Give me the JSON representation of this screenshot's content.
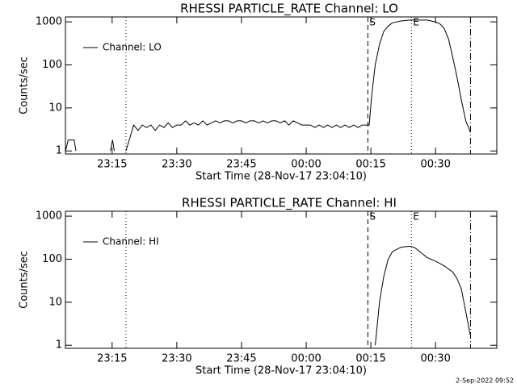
{
  "chart_data": [
    {
      "type": "line",
      "title": "RHESSI PARTICLE_RATE Channel: LO",
      "xlabel": "Start Time (28-Nov-17 23:04:10)",
      "ylabel": "Counts/sec",
      "log_y": true,
      "ylim": [
        0.85,
        1300
      ],
      "yticks": [
        1,
        10,
        100,
        1000
      ],
      "xlim": [
        4.17,
        104.2
      ],
      "xticks": [
        {
          "value": 15,
          "label": "23:15"
        },
        {
          "value": 30,
          "label": "23:30"
        },
        {
          "value": 45,
          "label": "23:45"
        },
        {
          "value": 60,
          "label": "00:00"
        },
        {
          "value": 75,
          "label": "00:15"
        },
        {
          "value": 90,
          "label": "00:30"
        }
      ],
      "legend": "upper left",
      "vlines": [
        {
          "x": 18.2,
          "style": "dotted"
        },
        {
          "x": 74.3,
          "style": "dashed",
          "label": "S"
        },
        {
          "x": 84.4,
          "style": "dotted",
          "label": "E"
        },
        {
          "x": 98.1,
          "style": "dashdot"
        }
      ],
      "x": [
        4.2,
        4.8,
        6.2,
        6.6,
        7,
        14.6,
        15.1,
        15.5,
        16,
        18.2,
        19.4,
        20,
        21,
        22,
        23,
        24,
        25,
        26,
        27,
        28,
        29,
        30,
        31,
        32,
        33,
        34,
        35,
        36,
        37,
        38,
        39,
        40,
        41,
        42,
        43,
        44,
        45,
        46,
        47,
        48,
        49,
        50,
        51,
        52,
        53,
        54,
        55,
        56,
        57,
        58,
        59,
        60,
        61,
        62,
        63,
        64,
        65,
        66,
        67,
        68,
        69,
        70,
        71,
        72,
        73,
        74,
        74.6,
        75.2,
        76,
        77,
        78,
        79,
        80,
        82,
        84,
        86,
        88,
        90,
        91,
        92,
        93,
        94,
        95,
        96,
        97,
        98.1
      ],
      "series": [
        {
          "name": "Channel: LO",
          "color": "#000000",
          "values": [
            1,
            1.8,
            1.8,
            1,
            null,
            1,
            1.8,
            1,
            null,
            1,
            2.5,
            4,
            3,
            4,
            3.5,
            4,
            3,
            4,
            3.5,
            4.5,
            3.5,
            4,
            4,
            5,
            4,
            4.5,
            4,
            5,
            4,
            4.5,
            5,
            4.5,
            5,
            5,
            4.5,
            5,
            5,
            4.5,
            5,
            5,
            4.5,
            5,
            4.5,
            5,
            5,
            4.5,
            5,
            4,
            5,
            4.5,
            4,
            4,
            4,
            3.5,
            4,
            3.5,
            4,
            3.5,
            4,
            3.5,
            4,
            3.5,
            4,
            3.5,
            4,
            4,
            4,
            20,
            100,
            300,
            600,
            800,
            950,
            1050,
            1100,
            1100,
            1100,
            1000,
            900,
            700,
            400,
            150,
            50,
            15,
            5,
            2.7
          ]
        }
      ]
    },
    {
      "type": "line",
      "title": "RHESSI PARTICLE_RATE Channel: HI",
      "xlabel": "Start Time (28-Nov-17 23:04:10)",
      "ylabel": "Counts/sec",
      "log_y": true,
      "ylim": [
        0.85,
        1300
      ],
      "yticks": [
        1,
        10,
        100,
        1000
      ],
      "xlim": [
        4.17,
        104.2
      ],
      "xticks": [
        {
          "value": 15,
          "label": "23:15"
        },
        {
          "value": 30,
          "label": "23:30"
        },
        {
          "value": 45,
          "label": "23:45"
        },
        {
          "value": 60,
          "label": "00:00"
        },
        {
          "value": 75,
          "label": "00:15"
        },
        {
          "value": 90,
          "label": "00:30"
        }
      ],
      "legend": "upper left",
      "vlines": [
        {
          "x": 18.2,
          "style": "dotted"
        },
        {
          "x": 74.3,
          "style": "dashed",
          "label": "S"
        },
        {
          "x": 84.4,
          "style": "dotted",
          "label": "E"
        },
        {
          "x": 98.1,
          "style": "dashdot"
        }
      ],
      "x": [
        76,
        77,
        78,
        79,
        80,
        82,
        84,
        85,
        86,
        88,
        90,
        92,
        94,
        95,
        96,
        97,
        98
      ],
      "series": [
        {
          "name": "Channel: HI",
          "color": "#000000",
          "values": [
            1,
            10,
            40,
            100,
            150,
            190,
            200,
            190,
            160,
            110,
            90,
            70,
            50,
            35,
            20,
            6,
            1.8
          ]
        }
      ]
    }
  ],
  "footer": "2-Sep-2022 09:52"
}
